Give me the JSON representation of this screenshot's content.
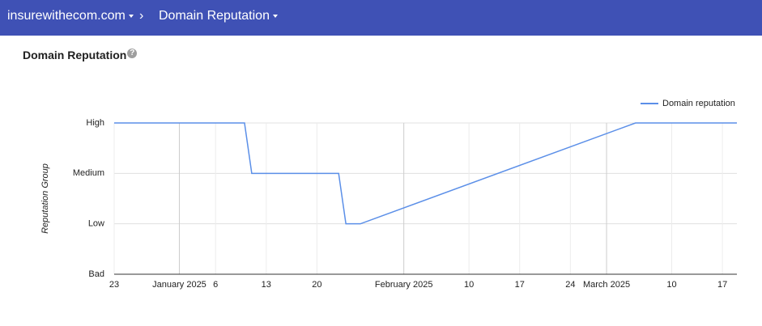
{
  "header": {
    "domain": "insurewithecom.com",
    "page": "Domain Reputation"
  },
  "chart_data": {
    "type": "line",
    "title": "Domain Reputation",
    "y_label": "Reputation Group",
    "x": [
      0,
      18,
      19,
      31,
      32,
      34,
      72,
      86
    ],
    "series": [
      {
        "name": "Domain reputation",
        "color": "#5b8fe8",
        "values": [
          3,
          3,
          2,
          2,
          1,
          1,
          3,
          3
        ]
      }
    ],
    "xlim": [
      0,
      86
    ],
    "ylim": [
      0,
      3
    ],
    "xticks": [
      {
        "value": 0,
        "label": "23"
      },
      {
        "value": 9,
        "label": "January 2025"
      },
      {
        "value": 14,
        "label": "6"
      },
      {
        "value": 21,
        "label": "13"
      },
      {
        "value": 28,
        "label": "20"
      },
      {
        "value": 40,
        "label": "February 2025"
      },
      {
        "value": 49,
        "label": "10"
      },
      {
        "value": 56,
        "label": "17"
      },
      {
        "value": 63,
        "label": "24"
      },
      {
        "value": 68,
        "label": "March 2025"
      },
      {
        "value": 77,
        "label": "10"
      },
      {
        "value": 84,
        "label": "17"
      }
    ],
    "yticks": [
      {
        "value": 0,
        "label": "Bad"
      },
      {
        "value": 1,
        "label": "Low"
      },
      {
        "value": 2,
        "label": "Medium"
      },
      {
        "value": 3,
        "label": "High"
      }
    ],
    "grid": true,
    "legend": "top-right"
  }
}
